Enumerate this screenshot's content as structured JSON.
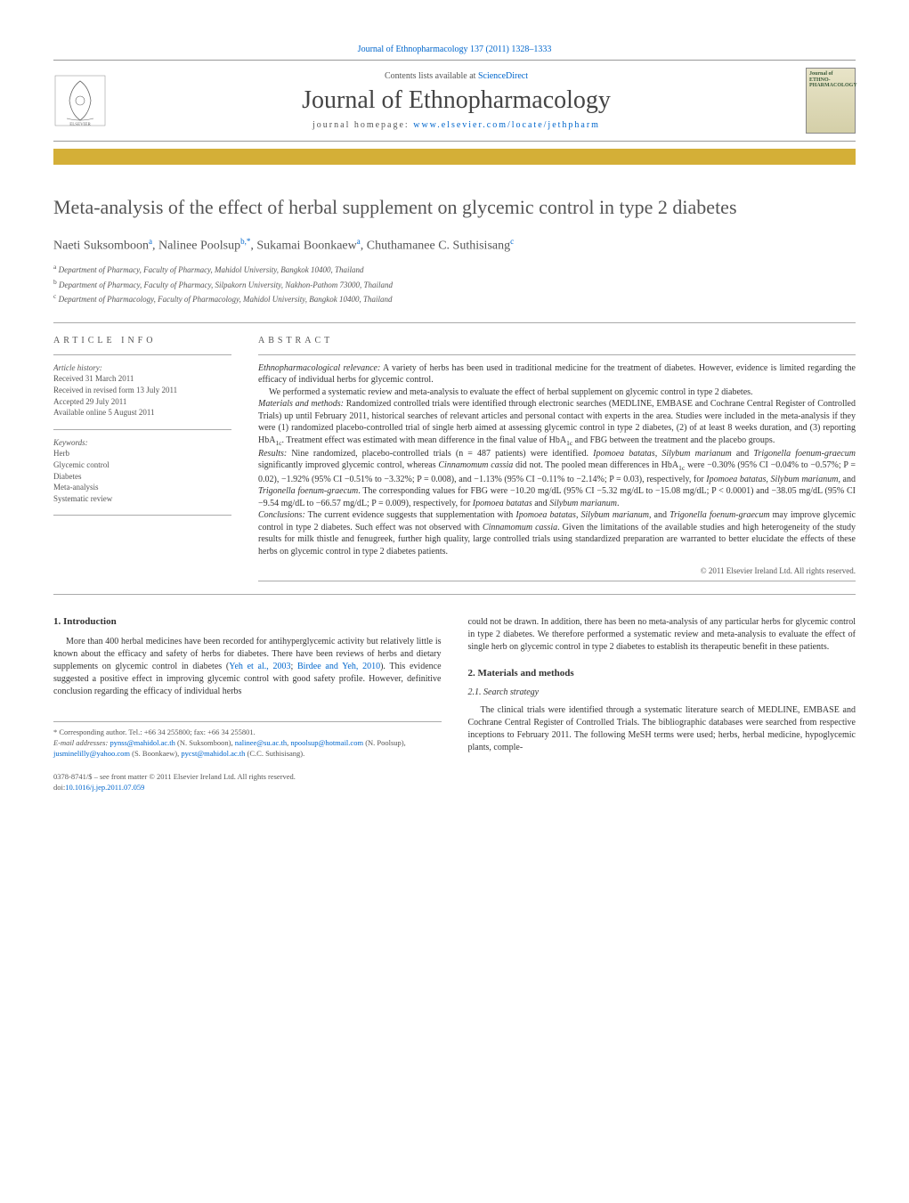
{
  "header": {
    "citation": "Journal of Ethnopharmacology 137 (2011) 1328–1333",
    "contents_prefix": "Contents lists available at ",
    "contents_link": "ScienceDirect",
    "journal_name": "Journal of Ethnopharmacology",
    "homepage_prefix": "journal homepage: ",
    "homepage_url": "www.elsevier.com/locate/jethpharm",
    "cover_text": "Journal of\nETHNO-\nPHARMACOLOGY"
  },
  "title": "Meta-analysis of the effect of herbal supplement on glycemic control in type 2 diabetes",
  "authors_html": "Naeti Suksomboon<sup>a</sup>, Nalinee Poolsup<sup>b,*</sup>, Sukamai Boonkaew<sup>a</sup>, Chuthamanee C. Suthisisang<sup>c</sup>",
  "affiliations": [
    {
      "sup": "a",
      "text": "Department of Pharmacy, Faculty of Pharmacy, Mahidol University, Bangkok 10400, Thailand"
    },
    {
      "sup": "b",
      "text": "Department of Pharmacy, Faculty of Pharmacy, Silpakorn University, Nakhon-Pathom 73000, Thailand"
    },
    {
      "sup": "c",
      "text": "Department of Pharmacology, Faculty of Pharmacology, Mahidol University, Bangkok 10400, Thailand"
    }
  ],
  "article_info_label": "ARTICLE INFO",
  "abstract_label": "ABSTRACT",
  "history": {
    "label": "Article history:",
    "received": "Received 31 March 2011",
    "revised": "Received in revised form 13 July 2011",
    "accepted": "Accepted 29 July 2011",
    "online": "Available online 5 August 2011"
  },
  "keywords": {
    "label": "Keywords:",
    "items": [
      "Herb",
      "Glycemic control",
      "Diabetes",
      "Meta-analysis",
      "Systematic review"
    ]
  },
  "abstract": {
    "relevance_label": "Ethnopharmacological relevance:",
    "relevance": " A variety of herbs has been used in traditional medicine for the treatment of diabetes. However, evidence is limited regarding the efficacy of individual herbs for glycemic control.",
    "aim": "We performed a systematic review and meta-analysis to evaluate the effect of herbal supplement on glycemic control in type 2 diabetes.",
    "methods_label": "Materials and methods:",
    "methods": " Randomized controlled trials were identified through electronic searches (MEDLINE, EMBASE and Cochrane Central Register of Controlled Trials) up until February 2011, historical searches of relevant articles and personal contact with experts in the area. Studies were included in the meta-analysis if they were (1) randomized placebo-controlled trial of single herb aimed at assessing glycemic control in type 2 diabetes, (2) of at least 8 weeks duration, and (3) reporting HbA1c. Treatment effect was estimated with mean difference in the final value of HbA1c and FBG between the treatment and the placebo groups.",
    "results_label": "Results:",
    "results": " Nine randomized, placebo-controlled trials (n = 487 patients) were identified. Ipomoea batatas, Silybum marianum and Trigonella foenum-graecum significantly improved glycemic control, whereas Cinnamomum cassia did not. The pooled mean differences in HbA1c were −0.30% (95% CI −0.04% to −0.57%; P = 0.02), −1.92% (95% CI −0.51% to −3.32%; P = 0.008), and −1.13% (95% CI −0.11% to −2.14%; P = 0.03), respectively, for Ipomoea batatas, Silybum marianum, and Trigonella foenum-graecum. The corresponding values for FBG were −10.20 mg/dL (95% CI −5.32 mg/dL to −15.08 mg/dL; P < 0.0001) and −38.05 mg/dL (95% CI −9.54 mg/dL to −66.57 mg/dL; P = 0.009), respectively, for Ipomoea batatas and Silybum marianum.",
    "conclusions_label": "Conclusions:",
    "conclusions": " The current evidence suggests that supplementation with Ipomoea batatas, Silybum marianum, and Trigonella foenum-graecum may improve glycemic control in type 2 diabetes. Such effect was not observed with Cinnamomum cassia. Given the limitations of the available studies and high heterogeneity of the study results for milk thistle and fenugreek, further high quality, large controlled trials using standardized preparation are warranted to better elucidate the effects of these herbs on glycemic control in type 2 diabetes patients.",
    "copyright": "© 2011 Elsevier Ireland Ltd. All rights reserved."
  },
  "body": {
    "intro_heading": "1. Introduction",
    "intro_text": "More than 400 herbal medicines have been recorded for antihyperglycemic activity but relatively little is known about the efficacy and safety of herbs for diabetes. There have been reviews of herbs and dietary supplements on glycemic control in diabetes (Yeh et al., 2003; Birdee and Yeh, 2010). This evidence suggested a positive effect in improving glycemic control with good safety profile. However, definitive conclusion regarding the efficacy of individual herbs",
    "intro_cont": "could not be drawn. In addition, there has been no meta-analysis of any particular herbs for glycemic control in type 2 diabetes. We therefore performed a systematic review and meta-analysis to evaluate the effect of single herb on glycemic control in type 2 diabetes to establish its therapeutic benefit in these patients.",
    "methods_heading": "2. Materials and methods",
    "search_heading": "2.1. Search strategy",
    "search_text": "The clinical trials were identified through a systematic literature search of MEDLINE, EMBASE and Cochrane Central Register of Controlled Trials. The bibliographic databases were searched from respective inceptions to February 2011. The following MeSH terms were used; herbs, herbal medicine, hypoglycemic plants, comple-"
  },
  "footnote": {
    "corresponding": "* Corresponding author. Tel.: +66 34 255800; fax: +66 34 255801.",
    "email_label": "E-mail addresses:",
    "emails": " pynss@mahidol.ac.th (N. Suksomboon), nalinee@su.ac.th, npoolsup@hotmail.com (N. Poolsup), jusminelilly@yahoo.com (S. Boonkaew), pycst@mahidol.ac.th (C.C. Suthisisang)."
  },
  "doi": {
    "issn": "0378-8741/$ – see front matter © 2011 Elsevier Ireland Ltd. All rights reserved.",
    "doi_label": "doi:",
    "doi_value": "10.1016/j.jep.2011.07.059"
  },
  "colors": {
    "link": "#0066cc",
    "gold_bar": "#d4af37",
    "text": "#333333",
    "muted": "#555555",
    "border": "#aaaaaa"
  }
}
